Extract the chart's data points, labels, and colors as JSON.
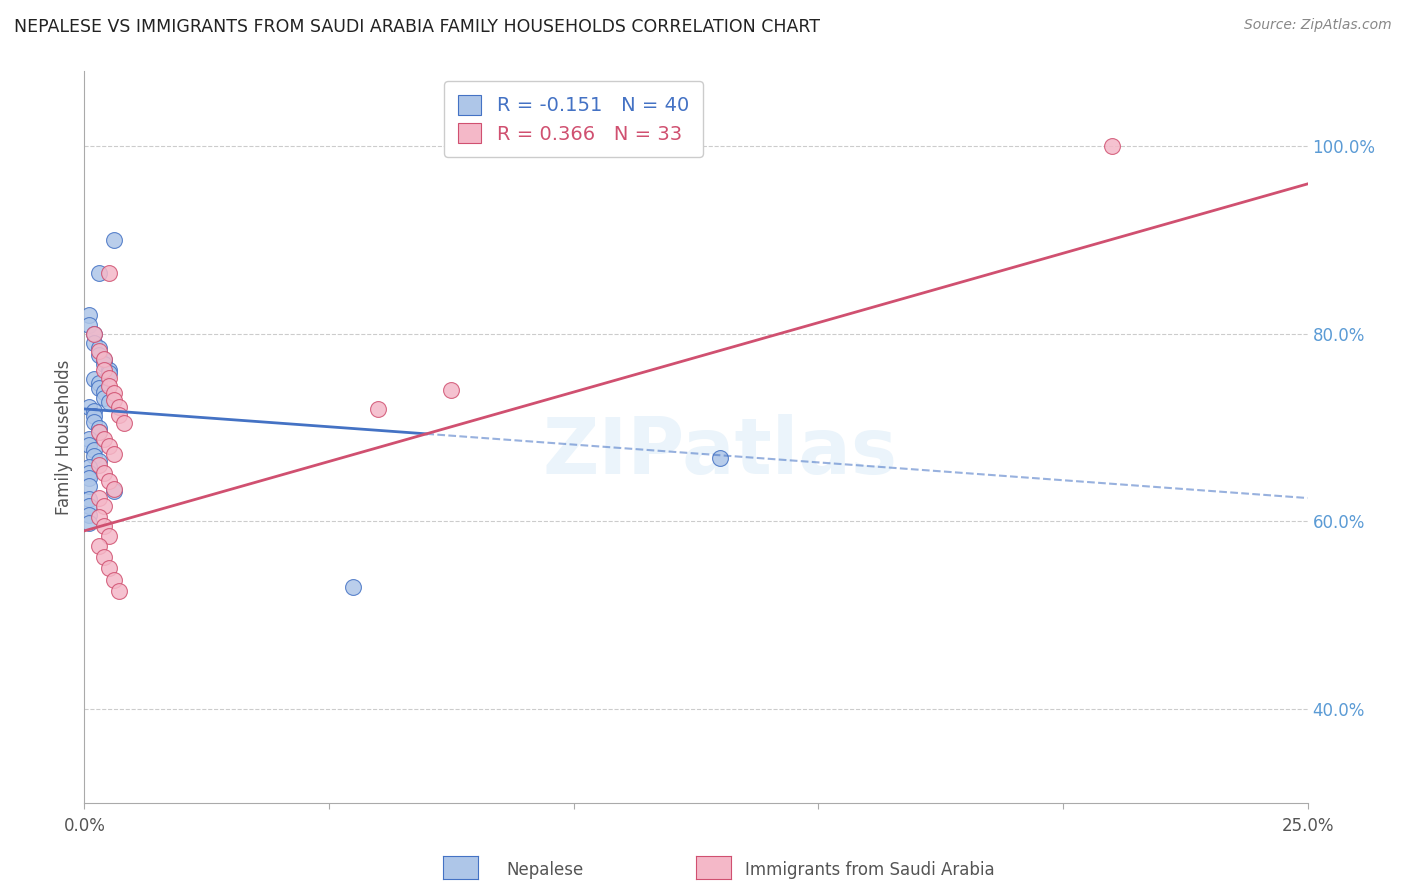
{
  "title": "NEPALESE VS IMMIGRANTS FROM SAUDI ARABIA FAMILY HOUSEHOLDS CORRELATION CHART",
  "source": "Source: ZipAtlas.com",
  "ylabel": "Family Households",
  "x_label_nepalese": "Nepalese",
  "x_label_saudi": "Immigrants from Saudi Arabia",
  "xlim": [
    0.0,
    0.25
  ],
  "ylim": [
    0.3,
    1.08
  ],
  "xticks": [
    0.0,
    0.05,
    0.1,
    0.15,
    0.2,
    0.25
  ],
  "xtick_labels": [
    "0.0%",
    "",
    "",
    "",
    "",
    "25.0%"
  ],
  "yticks_right": [
    0.4,
    0.6,
    0.8,
    1.0
  ],
  "ytick_labels_right": [
    "40.0%",
    "60.0%",
    "80.0%",
    "100.0%"
  ],
  "legend_blue_R": "R = -0.151",
  "legend_blue_N": "40",
  "legend_pink_R": "R = 0.366",
  "legend_pink_N": "33",
  "blue_color": "#aec6e8",
  "blue_edge_color": "#4472c4",
  "blue_line_color": "#4472c4",
  "pink_color": "#f4b8c8",
  "pink_edge_color": "#d05070",
  "pink_line_color": "#d05070",
  "blue_scatter_x": [
    0.006,
    0.003,
    0.001,
    0.001,
    0.002,
    0.002,
    0.003,
    0.003,
    0.004,
    0.004,
    0.005,
    0.005,
    0.002,
    0.003,
    0.003,
    0.004,
    0.004,
    0.005,
    0.001,
    0.002,
    0.002,
    0.002,
    0.003,
    0.003,
    0.001,
    0.001,
    0.002,
    0.002,
    0.003,
    0.001,
    0.001,
    0.001,
    0.001,
    0.006,
    0.001,
    0.001,
    0.001,
    0.001,
    0.13,
    0.055
  ],
  "blue_scatter_y": [
    0.9,
    0.865,
    0.82,
    0.81,
    0.8,
    0.79,
    0.785,
    0.778,
    0.772,
    0.768,
    0.762,
    0.758,
    0.752,
    0.748,
    0.742,
    0.738,
    0.732,
    0.727,
    0.722,
    0.718,
    0.712,
    0.706,
    0.7,
    0.695,
    0.688,
    0.682,
    0.676,
    0.67,
    0.664,
    0.658,
    0.652,
    0.646,
    0.638,
    0.632,
    0.624,
    0.616,
    0.607,
    0.598,
    0.668,
    0.53
  ],
  "pink_scatter_x": [
    0.005,
    0.002,
    0.003,
    0.004,
    0.004,
    0.005,
    0.005,
    0.006,
    0.006,
    0.007,
    0.007,
    0.008,
    0.003,
    0.004,
    0.005,
    0.006,
    0.003,
    0.004,
    0.005,
    0.006,
    0.003,
    0.004,
    0.003,
    0.004,
    0.005,
    0.003,
    0.004,
    0.005,
    0.006,
    0.007,
    0.06,
    0.21,
    0.075
  ],
  "pink_scatter_y": [
    0.865,
    0.8,
    0.782,
    0.773,
    0.762,
    0.753,
    0.745,
    0.737,
    0.73,
    0.722,
    0.714,
    0.705,
    0.695,
    0.688,
    0.68,
    0.672,
    0.66,
    0.652,
    0.643,
    0.635,
    0.625,
    0.616,
    0.605,
    0.595,
    0.585,
    0.574,
    0.562,
    0.55,
    0.538,
    0.526,
    0.72,
    1.0,
    0.74
  ],
  "blue_trend_x0": 0.0,
  "blue_trend_x1": 0.25,
  "blue_trend_y0": 0.72,
  "blue_trend_y1": 0.625,
  "pink_trend_x0": 0.0,
  "pink_trend_x1": 0.25,
  "pink_trend_y0": 0.59,
  "pink_trend_y1": 0.96,
  "background_color": "#ffffff",
  "grid_color": "#cccccc",
  "title_color": "#222222",
  "right_axis_color": "#5b9bd5",
  "watermark": "ZIPatlas"
}
